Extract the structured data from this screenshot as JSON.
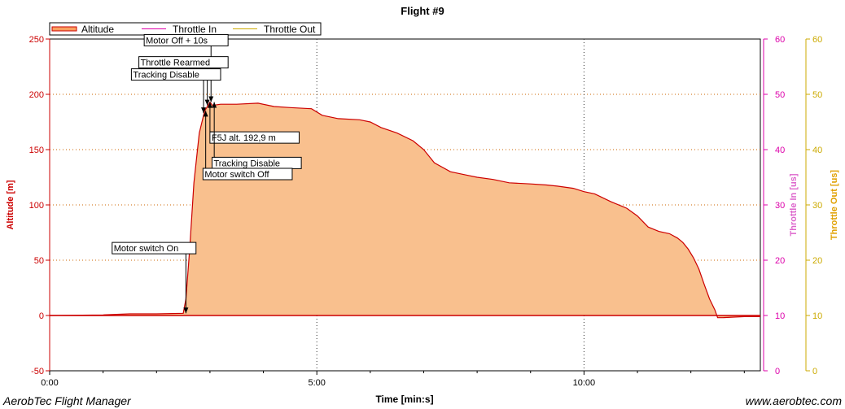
{
  "footer": {
    "left": "AerobTec Flight Manager",
    "right": "www.aerobtec.com"
  },
  "chart_data": {
    "type": "area",
    "title": "Flight #9",
    "xlabel": "Time [min:s]",
    "ylabel": "Altitude [m]",
    "y2label": "Throttle In [us]",
    "y3label": "Throttle Out [us]",
    "xlim": [
      0,
      13.3
    ],
    "ylim": [
      -50,
      250
    ],
    "y2lim": [
      0,
      60
    ],
    "y3lim": [
      0,
      60
    ],
    "x_ticks": [
      {
        "value": 0,
        "label": "0:00"
      },
      {
        "value": 5,
        "label": "5:00"
      },
      {
        "value": 10,
        "label": "10:00"
      }
    ],
    "y_ticks": [
      -50,
      0,
      50,
      100,
      150,
      200,
      250
    ],
    "y2_ticks": [
      0,
      10,
      20,
      30,
      40,
      50,
      60
    ],
    "y3_ticks": [
      0,
      10,
      20,
      30,
      40,
      50,
      60
    ],
    "grid": true,
    "legend": {
      "placement": "top-left",
      "entries": [
        "Altitude",
        "Throttle In",
        "Throttle Out"
      ]
    },
    "series": [
      {
        "name": "Altitude",
        "color": "#cc0000",
        "fill": "#f9c08e",
        "x": [
          0,
          1.0,
          1.5,
          2.0,
          2.5,
          2.55,
          2.62,
          2.7,
          2.8,
          2.9,
          3.0,
          3.05,
          3.2,
          3.5,
          3.9,
          4.2,
          4.5,
          4.9,
          5.1,
          5.4,
          5.8,
          6.0,
          6.2,
          6.5,
          6.8,
          7.0,
          7.2,
          7.5,
          7.8,
          8.0,
          8.3,
          8.6,
          9.0,
          9.3,
          9.5,
          9.8,
          10.0,
          10.2,
          10.5,
          10.8,
          11.0,
          11.2,
          11.4,
          11.6,
          11.75,
          11.85,
          11.95,
          12.05,
          12.15,
          12.25,
          12.35,
          12.45,
          12.5,
          12.6,
          12.8,
          13.0,
          13.3
        ],
        "y": [
          0,
          0.5,
          1.5,
          1.5,
          2,
          15,
          60,
          120,
          165,
          185,
          192.9,
          190,
          191,
          191,
          192,
          189,
          188,
          187,
          181,
          178,
          177,
          175,
          170,
          165,
          158,
          150,
          138,
          130,
          127,
          125,
          123,
          120,
          119,
          118,
          117,
          115,
          112,
          110,
          103,
          97,
          90,
          80,
          76,
          74,
          70,
          66,
          60,
          52,
          42,
          28,
          15,
          5,
          -2,
          -2,
          -1.5,
          -1,
          -1
        ]
      },
      {
        "name": "Throttle In",
        "color": "#dd00aa",
        "x": [
          0,
          13.3
        ],
        "y": [
          10,
          10
        ]
      },
      {
        "name": "Throttle Out",
        "color": "#ccaa00",
        "x": [
          0,
          13.3
        ],
        "y": [
          10,
          10
        ]
      }
    ],
    "annotations": [
      {
        "text": "Motor switch On",
        "x": 2.55,
        "y": 2,
        "label_x": 1.2,
        "label_y": 58
      },
      {
        "text": "Motor Off + 10s",
        "x": 3.02,
        "y": 193,
        "label_x": 1.8,
        "label_y": 246
      },
      {
        "text": "Throttle Rearmed",
        "x": 2.95,
        "y": 190,
        "label_x": 1.7,
        "label_y": 226
      },
      {
        "text": "Tracking Disable",
        "x": 2.88,
        "y": 183,
        "label_x": 1.56,
        "label_y": 215
      },
      {
        "text": "F5J alt. 192,9 m",
        "x": 3.0,
        "y": 192.9,
        "label_x": 3.03,
        "label_y": 158
      },
      {
        "text": "Tracking Disable",
        "x": 3.08,
        "y": 193,
        "label_x": 3.07,
        "label_y": 135
      },
      {
        "text": "Motor switch Off",
        "x": 2.92,
        "y": 185,
        "label_x": 2.9,
        "label_y": 125
      }
    ]
  }
}
